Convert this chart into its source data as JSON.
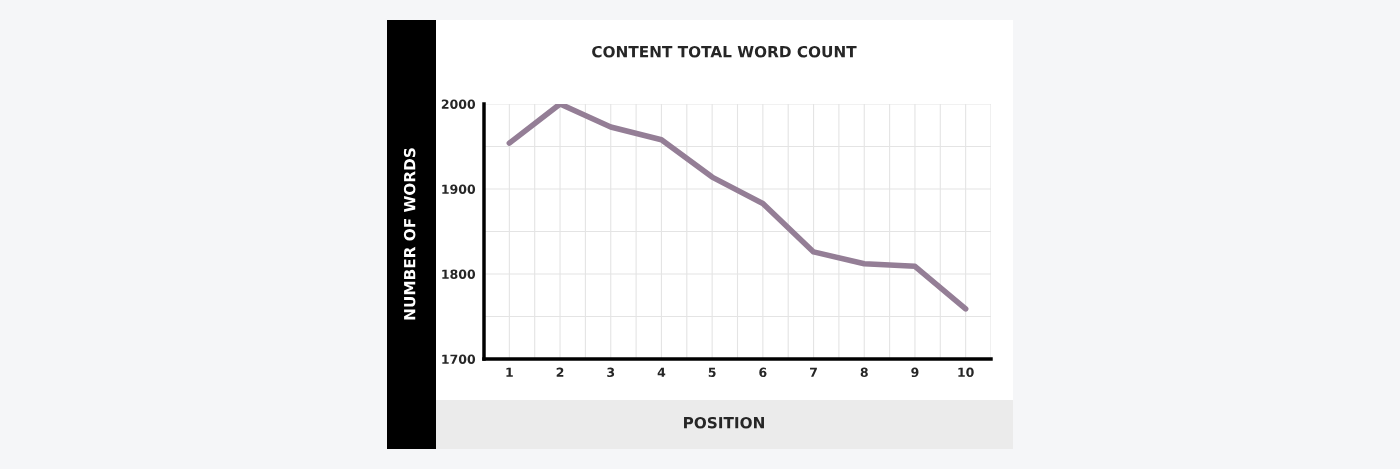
{
  "chart_data": {
    "type": "line",
    "title": "CONTENT TOTAL WORD COUNT",
    "xlabel": "POSITION",
    "ylabel": "NUMBER OF WORDS",
    "x": [
      1,
      2,
      3,
      4,
      5,
      6,
      7,
      8,
      9,
      10
    ],
    "series": [
      {
        "values": [
          1954,
          2000,
          1973,
          1958,
          1914,
          1883,
          1826,
          1812,
          1809,
          1759
        ],
        "color": "#947e96"
      }
    ],
    "xlim": [
      0.5,
      10.5
    ],
    "ylim": [
      1700,
      2000
    ],
    "xticks": [
      1,
      {
        "value": 1.5,
        "label": null
      },
      2,
      {
        "value": 2.5,
        "label": null
      },
      3,
      {
        "value": 3.5,
        "label": null
      },
      4,
      {
        "value": 4.5,
        "label": null
      },
      5,
      {
        "value": 5.5,
        "label": null
      },
      6,
      {
        "value": 6.5,
        "label": null
      },
      7,
      {
        "value": 7.5,
        "label": null
      },
      8,
      {
        "value": 8.5,
        "label": null
      },
      9,
      {
        "value": 9.5,
        "label": null
      },
      10,
      {
        "value": 10.5,
        "label": null
      }
    ],
    "yticks": [
      1700,
      {
        "value": 1750,
        "label": null
      },
      1800,
      {
        "value": 1850,
        "label": null
      },
      1900,
      {
        "value": 1950,
        "label": null
      },
      2000
    ],
    "grid": true,
    "line_style": "solid",
    "marker": "none"
  }
}
